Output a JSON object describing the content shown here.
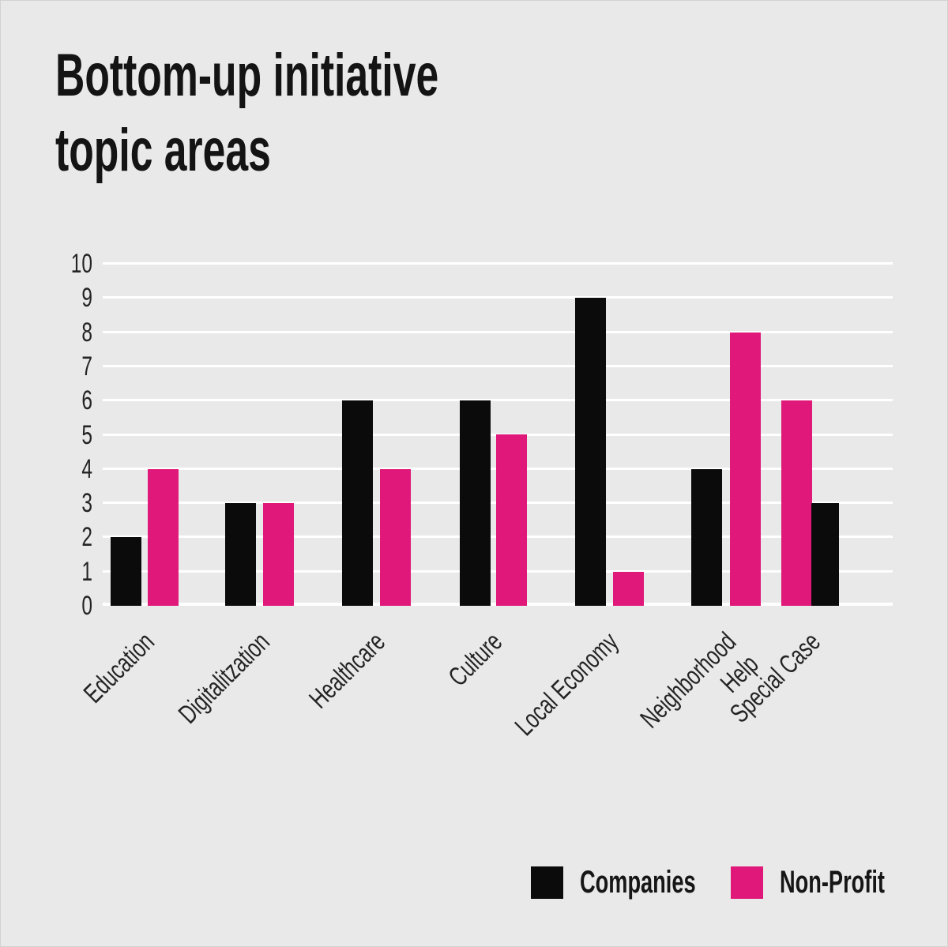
{
  "title_lines": [
    "Bottom-up initiative",
    "topic areas"
  ],
  "chart_data": {
    "type": "bar",
    "title": "Bottom-up initiative topic areas",
    "categories": [
      "Education",
      "Digitalitzation",
      "Healthcare",
      "Culture",
      "Local Economy",
      "Neighborhood\nHelp",
      "Special Case"
    ],
    "series": [
      {
        "name": "Companies",
        "color": "#0b0b0b",
        "values": [
          2,
          3,
          6,
          6,
          9,
          4,
          3
        ]
      },
      {
        "name": "Non-Profit",
        "color": "#df1879",
        "values": [
          4,
          3,
          4,
          5,
          1,
          8,
          6
        ]
      }
    ],
    "ylim": [
      0,
      10
    ],
    "yticks": [
      0,
      1,
      2,
      3,
      4,
      5,
      6,
      7,
      8,
      9,
      10
    ],
    "grid": "horizontal white gridlines on light-gray background",
    "legend_position": "bottom-right",
    "layout_hints": {
      "bar_order_standard": "Companies left, Non-Profit right",
      "special_case_group": "Non-Profit bar drawn left of Companies bar, bars touching",
      "x_labels_rotation_deg": -45
    }
  },
  "legend": {
    "items": [
      {
        "label": "Companies",
        "color": "#0b0b0b"
      },
      {
        "label": "Non-Profit",
        "color": "#df1879"
      }
    ]
  },
  "colors": {
    "background": "#e9e9e9",
    "gridline": "#ffffff",
    "text": "#242424",
    "companies": "#0b0b0b",
    "non_profit": "#df1879"
  }
}
